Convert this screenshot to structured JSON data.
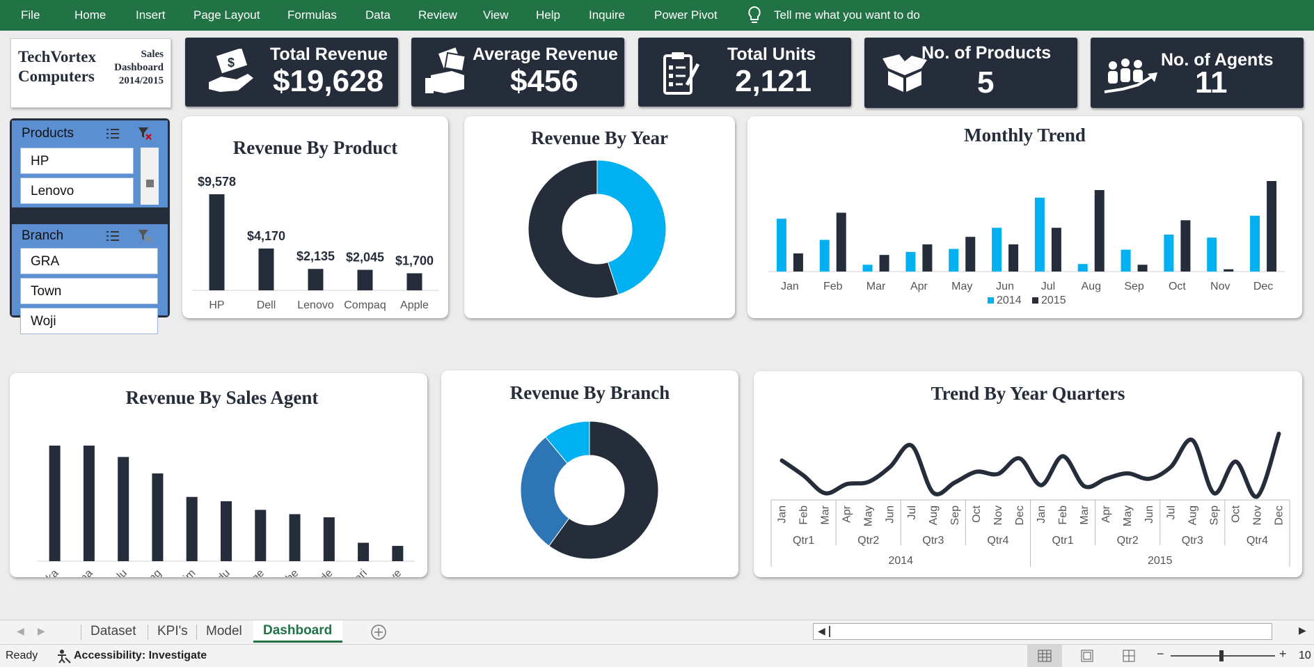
{
  "ribbon": {
    "tabs": [
      "File",
      "Home",
      "Insert",
      "Page Layout",
      "Formulas",
      "Data",
      "Review",
      "View",
      "Help",
      "Inquire",
      "Power Pivot"
    ],
    "tell_me": "Tell me what you want to do"
  },
  "logo": {
    "company_line1": "TechVortex",
    "company_line2": "Computers",
    "sub_line1": "Sales",
    "sub_line2": "Dashboard",
    "sub_line3": "2014/2015"
  },
  "kpis": [
    {
      "label": "Total Revenue",
      "value": "$19,628",
      "icon": "money-hand-icon"
    },
    {
      "label": "Average Revenue",
      "value": "$456",
      "icon": "cash-fist-icon"
    },
    {
      "label": "Total Units",
      "value": "2,121",
      "icon": "clipboard-icon"
    },
    {
      "label": "No. of Products",
      "value": "5",
      "icon": "open-box-icon"
    },
    {
      "label": "No. of Agents",
      "value": "11",
      "icon": "team-growth-icon"
    }
  ],
  "slicers": {
    "products": {
      "title": "Products",
      "items": [
        "HP",
        "Lenovo"
      ]
    },
    "branch": {
      "title": "Branch",
      "items": [
        "GRA",
        "Town",
        "Woji"
      ]
    }
  },
  "colors": {
    "dark": "#252d3b",
    "light_blue": "#00b0f0",
    "mid_blue": "#2e75b6",
    "excel_green": "#217346"
  },
  "chart_data": [
    {
      "id": "revenue-by-product",
      "type": "bar",
      "title": "Revenue By Product",
      "categories": [
        "HP",
        "Dell",
        "Lenovo",
        "Compaq",
        "Apple"
      ],
      "values": [
        9578,
        4170,
        2135,
        2045,
        1700
      ],
      "data_labels": [
        "$9,578",
        "$4,170",
        "$2,135",
        "$2,045",
        "$1,700"
      ]
    },
    {
      "id": "revenue-by-year",
      "type": "pie",
      "title": "Revenue By Year",
      "categories": [
        "2014",
        "2015"
      ],
      "values": [
        45,
        55
      ]
    },
    {
      "id": "monthly-trend",
      "type": "bar",
      "title": "Monthly Trend",
      "categories": [
        "Jan",
        "Feb",
        "Mar",
        "Apr",
        "May",
        "Jun",
        "Jul",
        "Aug",
        "Sep",
        "Oct",
        "Nov",
        "Dec"
      ],
      "series": [
        {
          "name": "2014",
          "values": [
            700,
            420,
            90,
            260,
            300,
            580,
            980,
            100,
            290,
            490,
            450,
            740
          ]
        },
        {
          "name": "2015",
          "values": [
            240,
            780,
            220,
            360,
            460,
            360,
            580,
            1080,
            90,
            680,
            30,
            1200
          ]
        }
      ]
    },
    {
      "id": "revenue-by-sales-agent",
      "type": "bar",
      "title": "Revenue By Sales Agent",
      "categories": [
        "Emeka",
        "Chioma",
        "Tolu",
        "Blessing",
        "Ibrahim",
        "Chinedu",
        "George",
        "Uche",
        "Tunde",
        "Torbari",
        "Tonye"
      ],
      "values": [
        2950,
        2950,
        2660,
        2240,
        1640,
        1530,
        1310,
        1200,
        1120,
        470,
        390
      ]
    },
    {
      "id": "revenue-by-branch",
      "type": "pie",
      "title": "Revenue By Branch",
      "categories": [
        "Woji",
        "GRA",
        "Town"
      ],
      "values": [
        60,
        29,
        11
      ]
    },
    {
      "id": "trend-by-year-quarters",
      "type": "line",
      "title": "Trend By Year Quarters",
      "categories": [
        "Jan",
        "Feb",
        "Mar",
        "Apr",
        "May",
        "Jun",
        "Jul",
        "Aug",
        "Sep",
        "Oct",
        "Nov",
        "Dec",
        "Jan",
        "Feb",
        "Mar",
        "Apr",
        "May",
        "Jun",
        "Jul",
        "Aug",
        "Sep",
        "Oct",
        "Nov",
        "Dec"
      ],
      "quarters": [
        "Qtr1",
        "Qtr2",
        "Qtr3",
        "Qtr4",
        "Qtr1",
        "Qtr2",
        "Qtr3",
        "Qtr4"
      ],
      "years": [
        "2014",
        "2015"
      ],
      "values": [
        700,
        420,
        90,
        260,
        300,
        580,
        980,
        100,
        290,
        490,
        450,
        740,
        240,
        780,
        220,
        360,
        460,
        360,
        580,
        1080,
        90,
        680,
        30,
        1200
      ]
    }
  ],
  "sheet_tabs": [
    "Dataset",
    "KPI's",
    "Model",
    "Dashboard"
  ],
  "active_sheet": "Dashboard",
  "status": {
    "ready": "Ready",
    "accessibility": "Accessibility: Investigate",
    "zoom": "10"
  }
}
